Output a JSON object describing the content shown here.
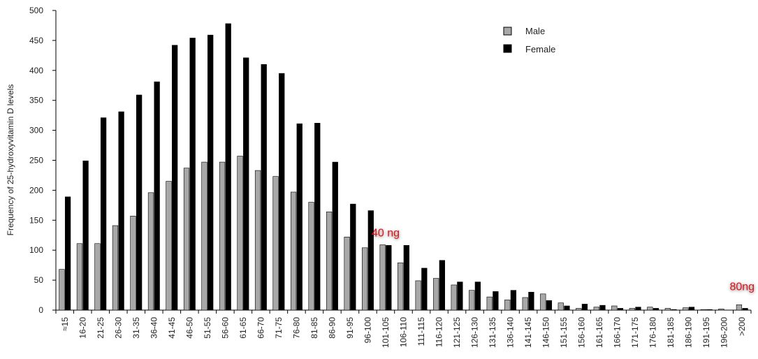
{
  "chart_data": {
    "type": "bar",
    "ylabel": "Frequency of 25-hydroxyvitamin D levels",
    "xlabel": "",
    "ylim": [
      0,
      500
    ],
    "yticks": [
      0,
      50,
      100,
      150,
      200,
      250,
      300,
      350,
      400,
      450,
      500
    ],
    "grid": false,
    "legend_position": "top-right",
    "categories": [
      "≈15",
      "16-20",
      "21-25",
      "26-30",
      "31-35",
      "36-40",
      "41-45",
      "46-50",
      "51-55",
      "56-60",
      "61-65",
      "66-70",
      "71-75",
      "76-80",
      "81-85",
      "86-90",
      "91-95",
      "96-100",
      "101-105",
      "106-110",
      "111-115",
      "116-120",
      "121-125",
      "126-130",
      "131-135",
      "136-140",
      "141-145",
      "146-150",
      "151-155",
      "156-160",
      "161-165",
      "166-170",
      "171-175",
      "176-180",
      "181-185",
      "186-190",
      "191-195",
      "196-200",
      ">200"
    ],
    "series": [
      {
        "name": "Male",
        "color": "#a8a8a8",
        "values": [
          68,
          111,
          111,
          141,
          157,
          196,
          215,
          237,
          247,
          247,
          257,
          233,
          223,
          197,
          180,
          164,
          122,
          104,
          109,
          79,
          49,
          53,
          42,
          33,
          22,
          17,
          21,
          27,
          12,
          3,
          5,
          7,
          3,
          5,
          3,
          4,
          1,
          2,
          9
        ]
      },
      {
        "name": "Female",
        "color": "#000000",
        "values": [
          189,
          249,
          321,
          331,
          359,
          381,
          442,
          454,
          459,
          478,
          421,
          410,
          395,
          311,
          312,
          247,
          177,
          166,
          108,
          108,
          70,
          83,
          47,
          47,
          31,
          33,
          30,
          16,
          7,
          10,
          8,
          3,
          5,
          3,
          1,
          5,
          1,
          0,
          3
        ]
      }
    ],
    "annotations": [
      {
        "text": "40 ng",
        "color": "#d8141a",
        "category": "101-105",
        "y": 130
      },
      {
        "text": "80ng",
        "color": "#d8141a",
        "category": ">200",
        "y": 40
      }
    ]
  }
}
